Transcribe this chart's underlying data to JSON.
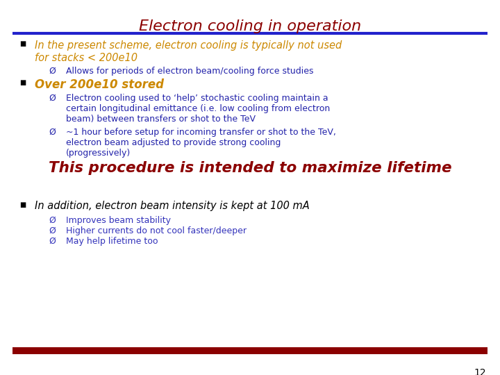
{
  "title": "Electron cooling in operation",
  "title_color": "#8B0000",
  "bg_color": "#FFFFFF",
  "top_line_color": "#2222CC",
  "bottom_line_color": "#8B0000",
  "black": "#000000",
  "orange_color": "#CC8800",
  "blue_dark": "#2222AA",
  "blue_sub": "#3333BB",
  "red_text": "#8B0000",
  "slide_number": "12",
  "bullet1_line1": "In the present scheme, electron cooling is typically not used",
  "bullet1_line2": "for stacks < 200e10",
  "bullet1_sub": "Allows for periods of electron beam/cooling force studies",
  "bullet2_main": "Over 200e10 stored",
  "bullet2_sub1_line1": "Electron cooling used to ‘help’ stochastic cooling maintain a",
  "bullet2_sub1_line2": "certain longitudinal emittance (i.e. low cooling from electron",
  "bullet2_sub1_line3": "beam) between transfers or shot to the TeV",
  "bullet2_sub2_line1": "~1 hour before setup for incoming transfer or shot to the TeV,",
  "bullet2_sub2_line2": "electron beam adjusted to provide strong cooling",
  "bullet2_sub2_line3": "(progressively)",
  "highlight": "This procedure is intended to maximize lifetime",
  "bullet3_main": "In addition, electron beam intensity is kept at 100 mA",
  "bullet3_sub1": "Improves beam stability",
  "bullet3_sub2": "Higher currents do not cool faster/deeper",
  "bullet3_sub3": "May help lifetime too"
}
